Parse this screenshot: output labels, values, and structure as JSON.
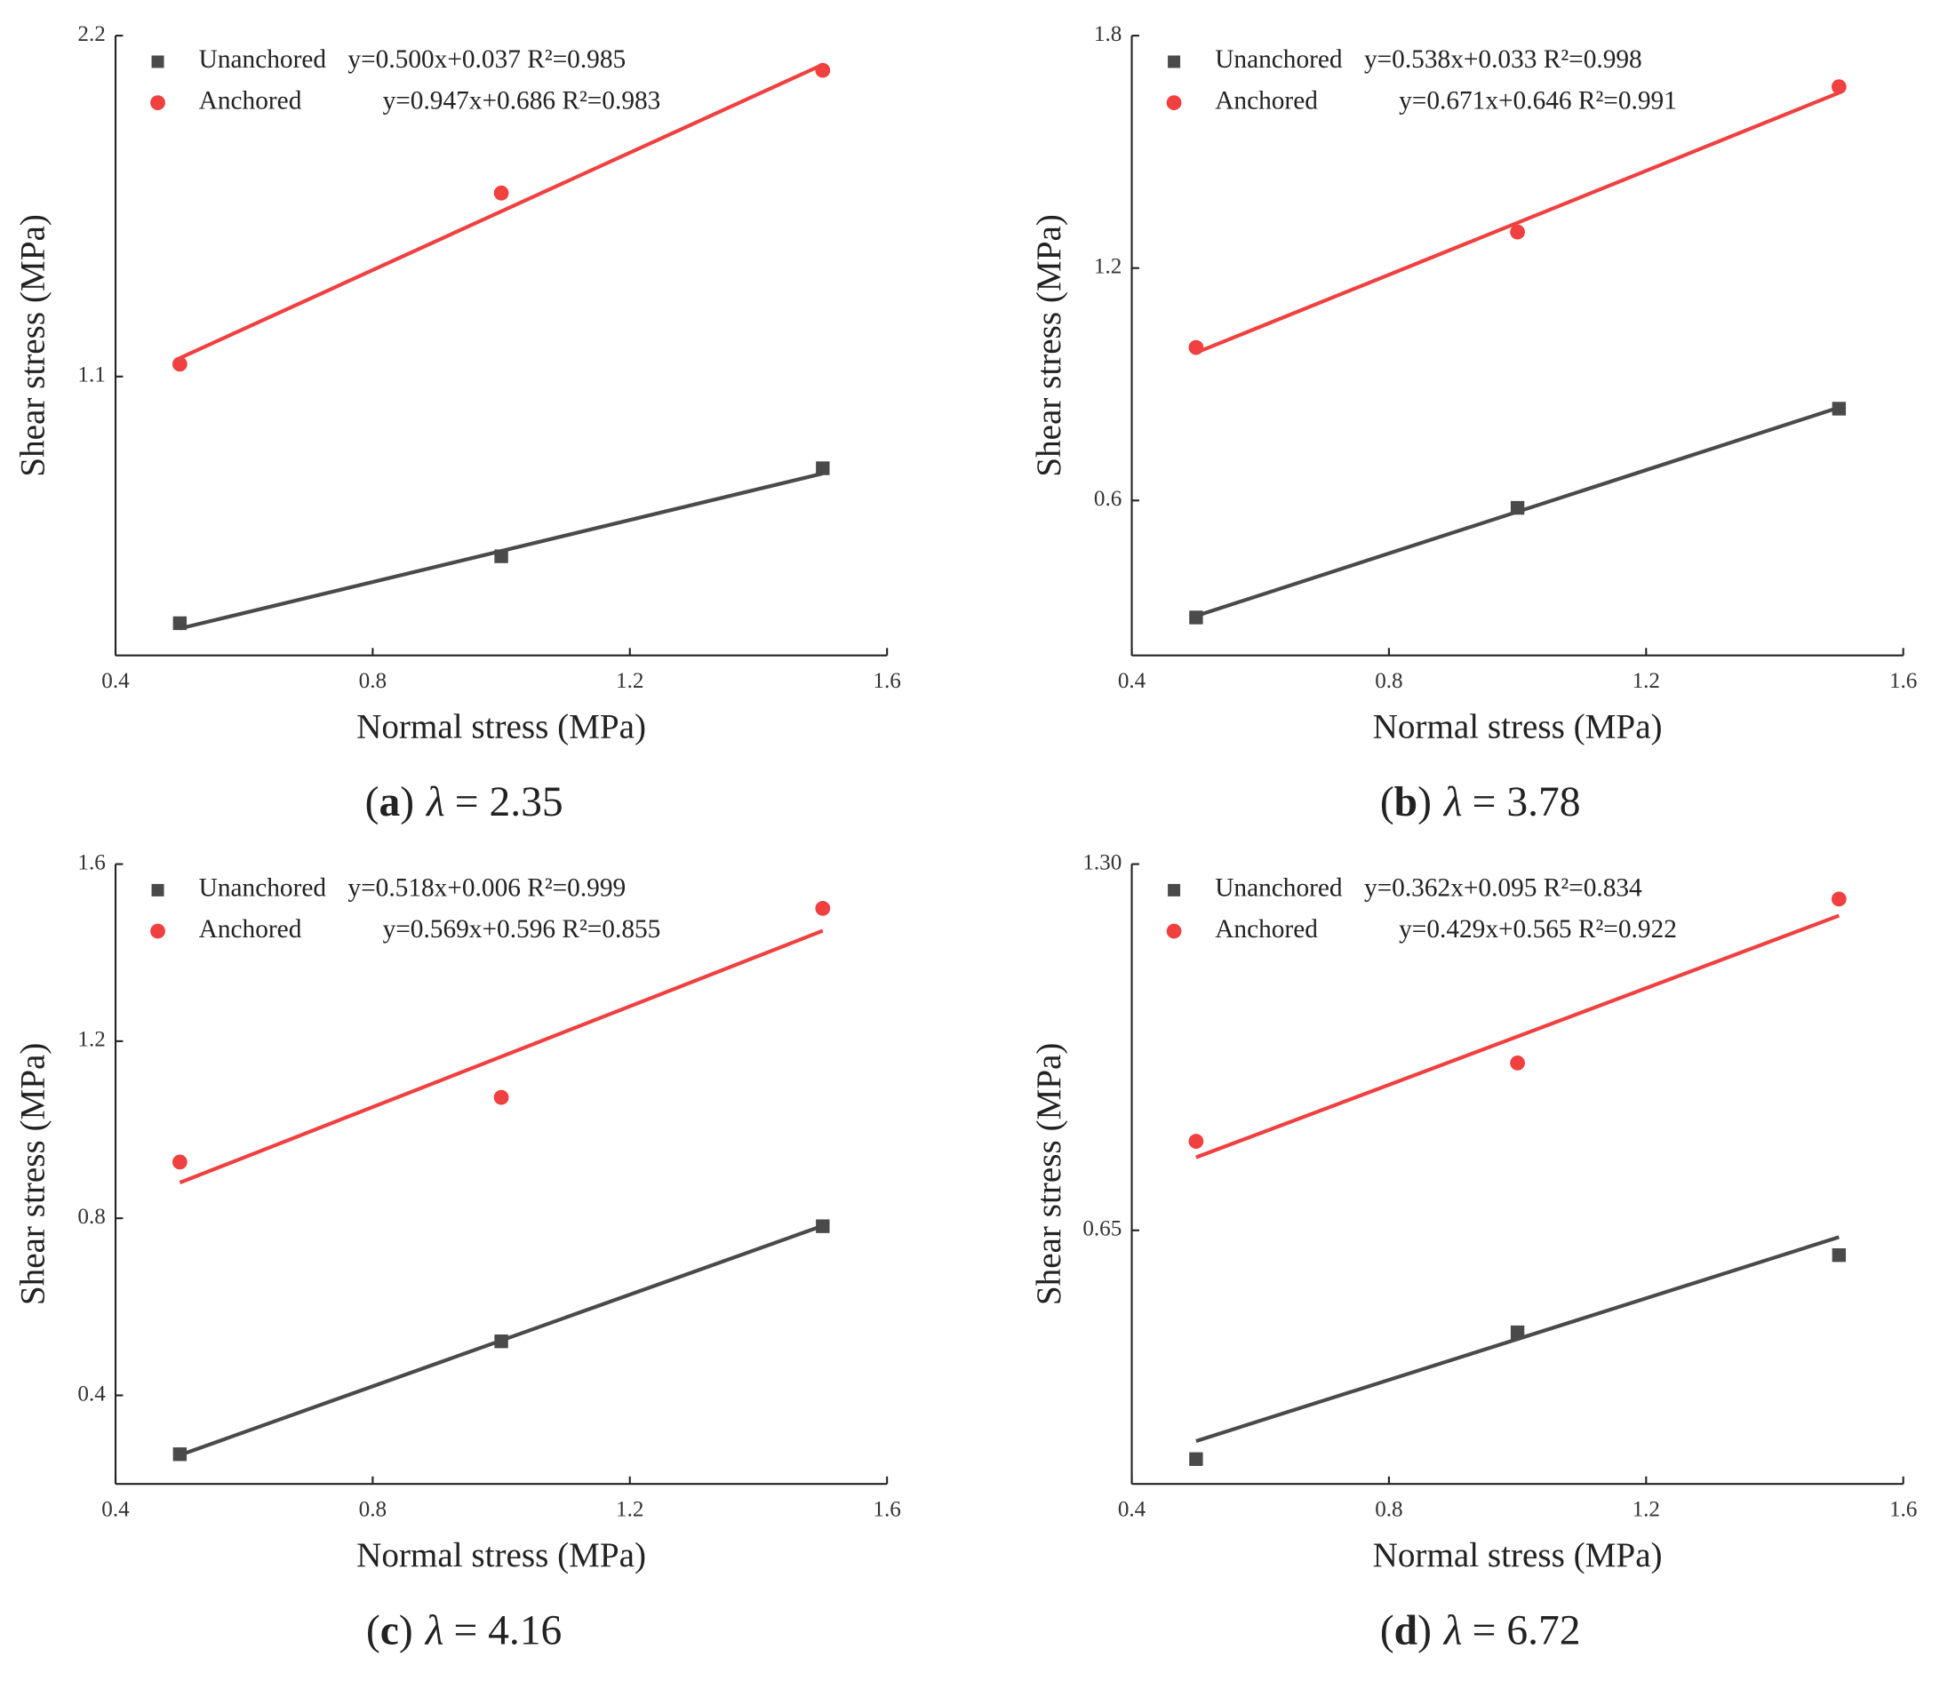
{
  "chart_data": [
    {
      "type": "scatter",
      "caption_parts": [
        "(",
        "a",
        ")",
        "λ",
        "= 2.35"
      ],
      "x_label": "Normal stress (MPa)",
      "y_label": "Shear stress (MPa)",
      "x": [
        0.5,
        1.0,
        1.5
      ],
      "xlim": [
        0.4,
        1.6
      ],
      "xticks": [
        0.4,
        0.8,
        1.2,
        1.6
      ],
      "ylim": [
        0.2,
        2.2
      ],
      "yticks": [
        1.1,
        2.2
      ],
      "series": [
        {
          "name": "Unanchored",
          "color": "#4a4a4a",
          "marker": "square",
          "values": [
            0.304,
            0.52,
            0.804
          ],
          "fit": {
            "slope": 0.5,
            "intercept": 0.037
          },
          "fit_label": "y=0.500x+0.037 R²=0.985"
        },
        {
          "name": "Anchored",
          "color": "#f04040",
          "marker": "circle",
          "values": [
            1.14,
            1.692,
            2.088
          ],
          "fit": {
            "slope": 0.947,
            "intercept": 0.686
          },
          "fit_label": "y=0.947x+0.686 R²=0.983"
        }
      ]
    },
    {
      "type": "scatter",
      "caption_parts": [
        "(",
        "b",
        ")",
        "λ",
        "= 3.78"
      ],
      "x_label": "Normal stress (MPa)",
      "y_label": "Shear stress (MPa)",
      "x": [
        0.5,
        1.0,
        1.5
      ],
      "xlim": [
        0.4,
        1.6
      ],
      "xticks": [
        0.4,
        0.8,
        1.2,
        1.6
      ],
      "ylim": [
        0.2,
        1.8
      ],
      "yticks": [
        0.6,
        1.2,
        1.8
      ],
      "series": [
        {
          "name": "Unanchored",
          "color": "#4a4a4a",
          "marker": "square",
          "values": [
            0.298,
            0.581,
            0.837
          ],
          "fit": {
            "slope": 0.538,
            "intercept": 0.033
          },
          "fit_label": "y=0.538x+0.033 R²=0.998"
        },
        {
          "name": "Anchored",
          "color": "#f04040",
          "marker": "circle",
          "values": [
            0.995,
            1.293,
            1.668
          ],
          "fit": {
            "slope": 0.671,
            "intercept": 0.646
          },
          "fit_label": "y=0.671x+0.646 R²=0.991"
        }
      ]
    },
    {
      "type": "scatter",
      "caption_parts": [
        "(",
        "c",
        ")",
        "λ",
        "= 4.16"
      ],
      "x_label": "Normal stress (MPa)",
      "y_label": "Shear stress (MPa)",
      "x": [
        0.5,
        1.0,
        1.5
      ],
      "xlim": [
        0.4,
        1.6
      ],
      "xticks": [
        0.4,
        0.8,
        1.2,
        1.6
      ],
      "ylim": [
        0.2,
        1.6
      ],
      "yticks": [
        0.4,
        0.8,
        1.2,
        1.6
      ],
      "series": [
        {
          "name": "Unanchored",
          "color": "#4a4a4a",
          "marker": "square",
          "values": [
            0.267,
            0.522,
            0.782
          ],
          "fit": {
            "slope": 0.518,
            "intercept": 0.006
          },
          "fit_label": "y=0.518x+0.006 R²=0.999"
        },
        {
          "name": "Anchored",
          "color": "#f04040",
          "marker": "circle",
          "values": [
            0.927,
            1.073,
            1.5
          ],
          "fit": {
            "slope": 0.569,
            "intercept": 0.596
          },
          "fit_label": "y=0.569x+0.596 R²=0.855"
        }
      ]
    },
    {
      "type": "scatter",
      "caption_parts": [
        "(",
        "d",
        ")",
        "λ",
        "= 6.72"
      ],
      "x_label": "Normal stress (MPa)",
      "y_label": "Shear stress (MPa)",
      "x": [
        0.5,
        1.0,
        1.5
      ],
      "xlim": [
        0.4,
        1.6
      ],
      "xticks": [
        0.4,
        0.8,
        1.2,
        1.6
      ],
      "ylim": [
        0.2,
        1.3
      ],
      "yticks": [
        0.65,
        {
          "value": 1.3,
          "label": "1.30"
        }
      ],
      "series": [
        {
          "name": "Unanchored",
          "color": "#4a4a4a",
          "marker": "square",
          "values": [
            0.244,
            0.469,
            0.606
          ],
          "fit": {
            "slope": 0.362,
            "intercept": 0.095
          },
          "fit_label": "y=0.362x+0.095 R²=0.834"
        },
        {
          "name": "Anchored",
          "color": "#f04040",
          "marker": "circle",
          "values": [
            0.808,
            0.947,
            1.238
          ],
          "fit": {
            "slope": 0.429,
            "intercept": 0.565
          },
          "fit_label": "y=0.429x+0.565 R²=0.922"
        }
      ]
    }
  ]
}
